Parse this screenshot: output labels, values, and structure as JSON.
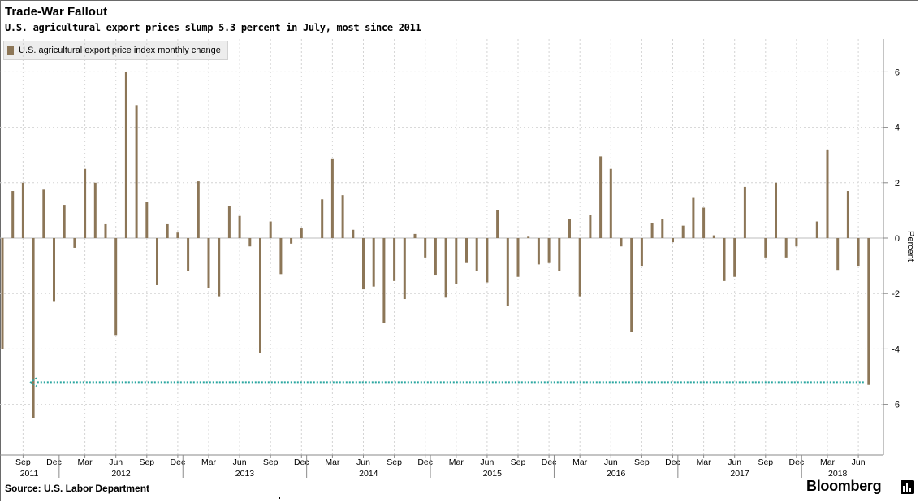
{
  "title": "Trade-War Fallout",
  "subtitle": "U.S. agricultural export prices slump 5.3 percent in July, most since 2011",
  "source": "Source: U.S. Labor Department",
  "brand": "Bloomberg",
  "brand_icon": "bloomberg-terminal-icon",
  "colors": {
    "bar": "#8c7657",
    "arrow": "#2aa6a0",
    "grid": "#d4d4d4"
  },
  "chart_data": {
    "type": "bar",
    "legend": [
      "U.S. agricultural export price index monthly change"
    ],
    "legend_position": "top-left",
    "ylabel": "Percent",
    "ylim": [
      -7.5,
      7.2
    ],
    "y_ticks": [
      6,
      4,
      2,
      0,
      -2,
      -4,
      -6
    ],
    "y_tick_labels": [
      "6",
      "4",
      "2",
      "0",
      "-2",
      "-4",
      "-6"
    ],
    "grid": true,
    "x_month_ticks": [
      "Sep",
      "Dec",
      "Mar",
      "Jun",
      "Sep",
      "Dec",
      "Mar",
      "Jun",
      "Sep",
      "Dec",
      "Mar",
      "Jun",
      "Sep",
      "Dec",
      "Mar",
      "Jun",
      "Sep",
      "Dec",
      "Mar",
      "Jun",
      "Sep",
      "Dec",
      "Mar",
      "Jun",
      "Sep",
      "Dec",
      "Mar",
      "Jun"
    ],
    "x_year_labels": [
      "2011",
      "2012",
      "2013",
      "2014",
      "2015",
      "2016",
      "2017",
      "2018"
    ],
    "x": [
      "2011-07",
      "2011-08",
      "2011-09",
      "2011-10",
      "2011-11",
      "2011-12",
      "2012-01",
      "2012-02",
      "2012-03",
      "2012-04",
      "2012-05",
      "2012-06",
      "2012-07",
      "2012-08",
      "2012-09",
      "2012-10",
      "2012-11",
      "2012-12",
      "2013-01",
      "2013-02",
      "2013-03",
      "2013-04",
      "2013-05",
      "2013-06",
      "2013-07",
      "2013-08",
      "2013-09",
      "2013-10",
      "2013-11",
      "2013-12",
      "2014-01",
      "2014-02",
      "2014-03",
      "2014-04",
      "2014-05",
      "2014-06",
      "2014-07",
      "2014-08",
      "2014-09",
      "2014-10",
      "2014-11",
      "2014-12",
      "2015-01",
      "2015-02",
      "2015-03",
      "2015-04",
      "2015-05",
      "2015-06",
      "2015-07",
      "2015-08",
      "2015-09",
      "2015-10",
      "2015-11",
      "2015-12",
      "2016-01",
      "2016-02",
      "2016-03",
      "2016-04",
      "2016-05",
      "2016-06",
      "2016-07",
      "2016-08",
      "2016-09",
      "2016-10",
      "2016-11",
      "2016-12",
      "2017-01",
      "2017-02",
      "2017-03",
      "2017-04",
      "2017-05",
      "2017-06",
      "2017-07",
      "2017-08",
      "2017-09",
      "2017-10",
      "2017-11",
      "2017-12",
      "2018-01",
      "2018-02",
      "2018-03",
      "2018-04",
      "2018-05",
      "2018-06",
      "2018-07"
    ],
    "values": [
      -4.0,
      1.7,
      2.0,
      -6.5,
      1.75,
      -2.3,
      1.2,
      -0.35,
      2.5,
      2.0,
      0.5,
      -3.5,
      6.0,
      4.8,
      1.3,
      -1.7,
      0.5,
      0.2,
      -1.2,
      2.05,
      -1.8,
      -2.1,
      1.15,
      0.8,
      -0.3,
      -4.15,
      0.6,
      -1.3,
      -0.2,
      0.35,
      0.0,
      1.4,
      2.85,
      1.55,
      0.3,
      -1.85,
      -1.75,
      -3.05,
      -1.55,
      -2.2,
      0.15,
      -0.7,
      -1.35,
      -2.15,
      -1.65,
      -0.9,
      -1.2,
      -1.6,
      1.0,
      -2.45,
      -1.4,
      0.05,
      -0.95,
      -0.9,
      -1.2,
      0.7,
      -2.1,
      0.85,
      2.95,
      2.5,
      -0.3,
      -3.4,
      -1.0,
      0.55,
      0.7,
      -0.15,
      0.45,
      1.45,
      1.1,
      0.1,
      -1.55,
      -1.4,
      1.85,
      0.0,
      -0.7,
      2.0,
      -0.7,
      -0.3,
      0.0,
      0.6,
      3.2,
      -1.15,
      1.7,
      -1.0,
      -5.3
    ],
    "annotation": {
      "type": "arrow",
      "from": "2018-07",
      "to": "2011-10",
      "y": -5.2
    }
  }
}
